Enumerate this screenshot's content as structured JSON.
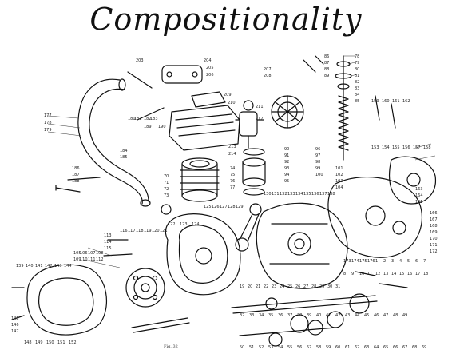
{
  "heading": "Compositionality",
  "figure_caption": "Fig. 32",
  "part_labels": [
    "203",
    "204",
    "205",
    "206",
    "207",
    "208",
    "209",
    "210",
    "211",
    "212",
    "213",
    "214",
    "177",
    "178",
    "179",
    "180",
    "181",
    "182",
    "183",
    "184",
    "185",
    "186",
    "187",
    "188",
    "189",
    "190",
    "70",
    "71",
    "72",
    "73",
    "74",
    "75",
    "76",
    "77",
    "78",
    "79",
    "80",
    "81",
    "82",
    "83",
    "84",
    "85",
    "86",
    "87",
    "88",
    "89",
    "90",
    "91",
    "92",
    "93",
    "94",
    "95",
    "96",
    "97",
    "98",
    "99",
    "100",
    "101",
    "102",
    "103",
    "104",
    "105",
    "106",
    "107",
    "108",
    "109",
    "110",
    "111",
    "112",
    "113",
    "114",
    "115",
    "116",
    "117",
    "118",
    "119",
    "120",
    "121",
    "122",
    "123",
    "124",
    "125",
    "126",
    "127",
    "128",
    "129",
    "130",
    "131",
    "132",
    "133",
    "134",
    "135",
    "136",
    "137",
    "138",
    "139",
    "140",
    "141",
    "142",
    "143",
    "144",
    "145",
    "146",
    "147",
    "148",
    "149",
    "150",
    "151",
    "152",
    "153",
    "154",
    "155",
    "156",
    "157",
    "158",
    "159",
    "160",
    "161",
    "162",
    "163",
    "164",
    "165",
    "166",
    "167",
    "168",
    "169",
    "170",
    "171",
    "172",
    "173",
    "174",
    "175",
    "176",
    "1",
    "2",
    "3",
    "4",
    "5",
    "6",
    "7",
    "8",
    "9",
    "10",
    "11",
    "12",
    "13",
    "14",
    "15",
    "16",
    "17",
    "18",
    "19",
    "20",
    "21",
    "22",
    "23",
    "24",
    "25",
    "26",
    "27",
    "28",
    "29",
    "30",
    "31",
    "32",
    "33",
    "34",
    "35",
    "36",
    "37",
    "38",
    "39",
    "40",
    "41",
    "42",
    "43",
    "44",
    "45",
    "46",
    "47",
    "48",
    "49",
    "50",
    "51",
    "52",
    "53",
    "54",
    "55",
    "56",
    "57",
    "58",
    "59",
    "60",
    "61",
    "62",
    "63",
    "64",
    "65",
    "66",
    "67",
    "68",
    "69"
  ]
}
